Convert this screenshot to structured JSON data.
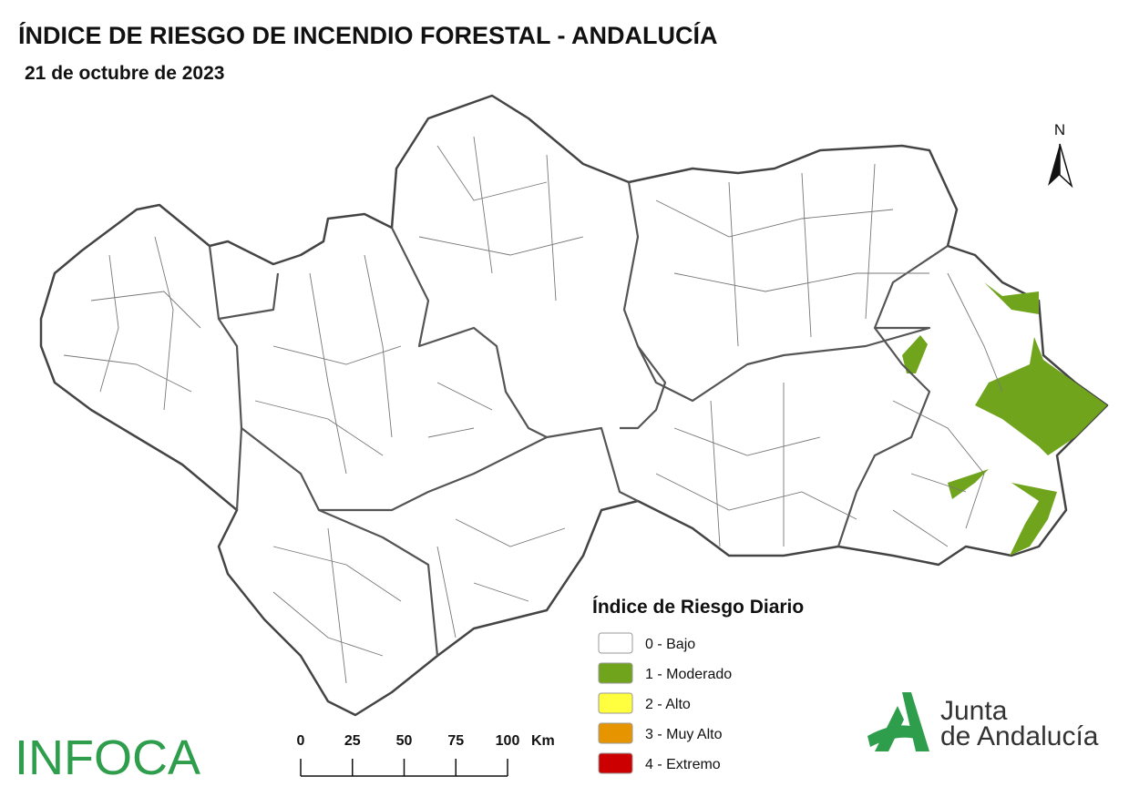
{
  "header": {
    "title": "ÍNDICE DE RIESGO DE INCENDIO FORESTAL - ANDALUCÍA",
    "subtitle": "21 de octubre de 2023"
  },
  "legend": {
    "title": "Índice de Riesgo Diario",
    "items": [
      {
        "label": "0 - Bajo",
        "color": "#ffffff"
      },
      {
        "label": "1 - Moderado",
        "color": "#70a41c"
      },
      {
        "label": "2 - Alto",
        "color": "#ffff40"
      },
      {
        "label": "3 - Muy Alto",
        "color": "#e69500"
      },
      {
        "label": "4 - Extremo",
        "color": "#cc0000"
      }
    ]
  },
  "scale_bar": {
    "ticks": [
      0,
      25,
      50,
      75,
      100
    ],
    "unit": "Km"
  },
  "north": "N",
  "logos": {
    "infoca": "INFOCA",
    "junta_line1": "Junta",
    "junta_line2": "de Andalucía"
  }
}
